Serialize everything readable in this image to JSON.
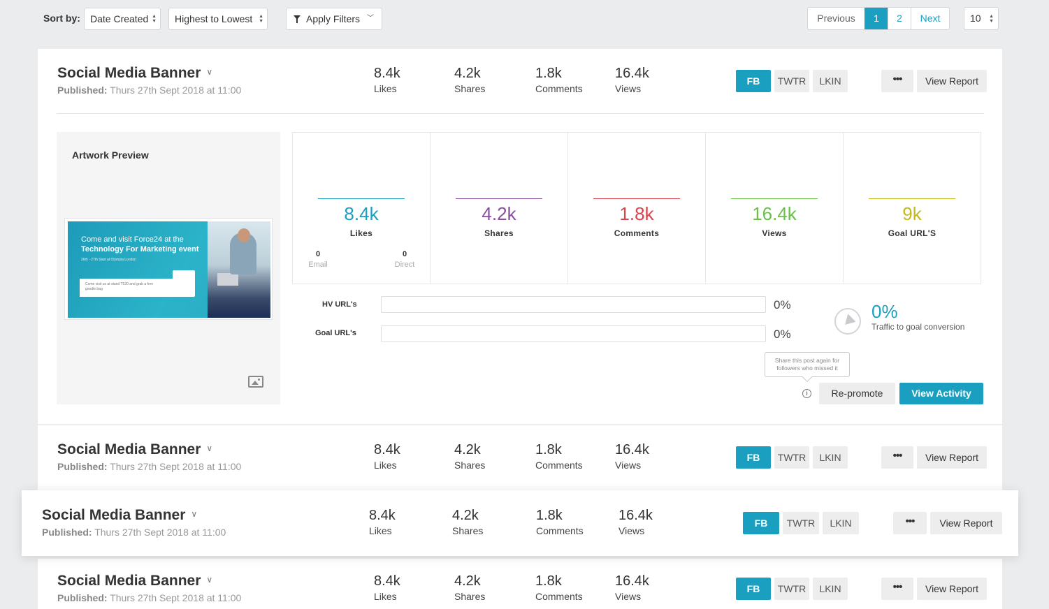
{
  "toolbar": {
    "sort_label": "Sort by:",
    "sort_field": "Date Created",
    "sort_order": "Highest to Lowest",
    "filter_label": "Apply Filters",
    "pager": {
      "previous": "Previous",
      "page1": "1",
      "page2": "2",
      "next": "Next"
    },
    "per_page": "10"
  },
  "posts": [
    {
      "title": "Social Media Banner",
      "published_label": "Published:",
      "published_date": "Thurs 27th Sept 2018 at 11:00",
      "likes": "8.4k",
      "likes_label": "Likes",
      "shares": "4.2k",
      "shares_label": "Shares",
      "comments": "1.8k",
      "comments_label": "Comments",
      "views": "16.4k",
      "views_label": "Views",
      "networks": {
        "fb": "FB",
        "twtr": "TWTR",
        "lkin": "LKIN"
      },
      "more": "•••",
      "report": "View Report"
    },
    {
      "title": "Social Media Banner",
      "published_label": "Published:",
      "published_date": "Thurs 27th Sept 2018 at 11:00",
      "likes": "8.4k",
      "likes_label": "Likes",
      "shares": "4.2k",
      "shares_label": "Shares",
      "comments": "1.8k",
      "comments_label": "Comments",
      "views": "16.4k",
      "views_label": "Views",
      "networks": {
        "fb": "FB",
        "twtr": "TWTR",
        "lkin": "LKIN"
      },
      "more": "•••",
      "report": "View Report"
    },
    {
      "title": "Social Media Banner",
      "published_label": "Published:",
      "published_date": "Thurs 27th Sept 2018 at 11:00",
      "likes": "8.4k",
      "likes_label": "Likes",
      "shares": "4.2k",
      "shares_label": "Shares",
      "comments": "1.8k",
      "comments_label": "Comments",
      "views": "16.4k",
      "views_label": "Views",
      "networks": {
        "fb": "FB",
        "twtr": "TWTR",
        "lkin": "LKIN"
      },
      "more": "•••",
      "report": "View Report"
    },
    {
      "title": "Social Media Banner",
      "published_label": "Published:",
      "published_date": "Thurs 27th Sept 2018 at 11:00",
      "likes": "8.4k",
      "likes_label": "Likes",
      "shares": "4.2k",
      "shares_label": "Shares",
      "comments": "1.8k",
      "comments_label": "Comments",
      "views": "16.4k",
      "views_label": "Views",
      "networks": {
        "fb": "FB",
        "twtr": "TWTR",
        "lkin": "LKIN"
      },
      "more": "•••",
      "report": "View Report"
    }
  ],
  "detail": {
    "preview_title": "Artwork Preview",
    "artwork": {
      "line1": "Come and visit Force24 at the",
      "line2": "Technology For Marketing event",
      "line3": "26th - 27th Sept at Olympia London",
      "box": "Come visit us at stand T520 and grab a free goodie bag"
    },
    "stats": [
      {
        "value": "8.4k",
        "label": "Likes",
        "color": "#1a9fc1"
      },
      {
        "value": "4.2k",
        "label": "Shares",
        "color": "#8a4f9e"
      },
      {
        "value": "1.8k",
        "label": "Comments",
        "color": "#d9434b"
      },
      {
        "value": "16.4k",
        "label": "Views",
        "color": "#6cbf4b"
      },
      {
        "value": "9k",
        "label": "Goal URL'S",
        "color": "#c4b81b"
      }
    ],
    "likes_sub": {
      "email_value": "0",
      "email_label": "Email",
      "direct_value": "0",
      "direct_label": "Direct"
    },
    "hv_url_label": "HV URL's",
    "hv_url_pct": "0%",
    "goal_url_label": "Goal URL's",
    "goal_url_pct": "0%",
    "conversion_pct": "0%",
    "conversion_label": "Traffic to goal conversion",
    "tooltip": "Share this post again for followers who missed it",
    "repromote": "Re-promote",
    "view_activity": "View Activity"
  }
}
